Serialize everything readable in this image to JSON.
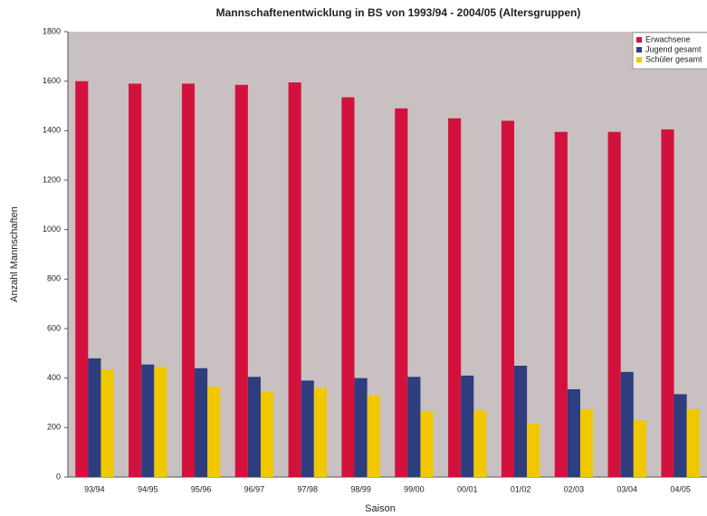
{
  "chart_data": {
    "type": "bar",
    "title": "Mannschaftenentwicklung in BS von 1993/94 - 2004/05 (Altersgruppen)",
    "x_label": "Saison",
    "y_label": "Anzahl Mannschaften",
    "categories": [
      "93/94",
      "94/95",
      "95/96",
      "96/97",
      "97/98",
      "98/99",
      "99/00",
      "00/01",
      "01/02",
      "02/03",
      "03/04",
      "04/05"
    ],
    "series": [
      {
        "name": "Erwachsene",
        "color": "#d2123c",
        "values": [
          1600,
          1590,
          1590,
          1585,
          1595,
          1535,
          1490,
          1450,
          1440,
          1395,
          1395,
          1405
        ]
      },
      {
        "name": "Jugend gesamt",
        "color": "#2e3d7e",
        "values": [
          480,
          455,
          440,
          405,
          390,
          400,
          405,
          410,
          450,
          355,
          425,
          335
        ]
      },
      {
        "name": "Schüler gesamt",
        "color": "#f0c800",
        "values": [
          435,
          445,
          365,
          345,
          360,
          330,
          265,
          270,
          215,
          275,
          230,
          275
        ]
      }
    ],
    "ylim": [
      0,
      1800
    ],
    "yticks": [
      0,
      200,
      400,
      600,
      800,
      1000,
      1200,
      1400,
      1600,
      1800
    ],
    "grid": false,
    "legend": "top-right"
  }
}
